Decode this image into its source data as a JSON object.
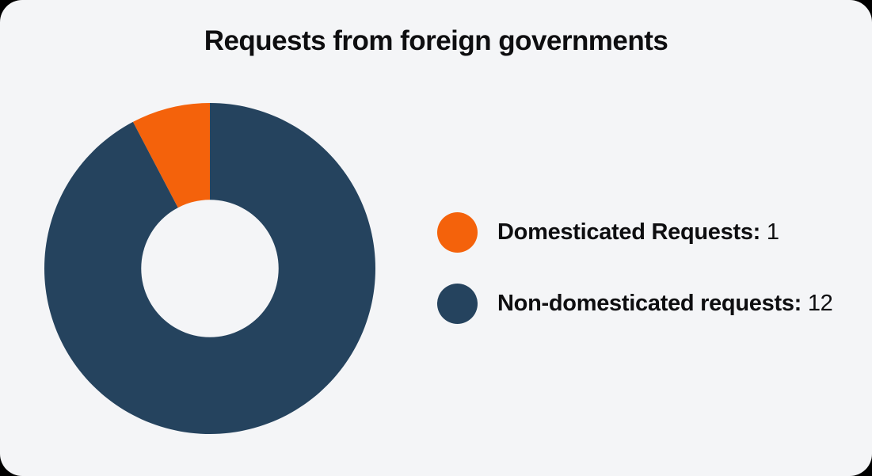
{
  "card": {
    "background_color": "#F4F5F7",
    "outer_background_color": "#000000"
  },
  "chart_data": {
    "type": "pie",
    "subtype": "donut",
    "title": "Requests from foreign governments",
    "series": [
      {
        "name": "Domesticated Requests",
        "value": 1,
        "color": "#F4620B"
      },
      {
        "name": "Non-domesticated requests",
        "value": 12,
        "color": "#25435E"
      }
    ],
    "total": 13,
    "rotation_deg": -27.69,
    "inner_radius_ratio": 0.415,
    "legend_position": "right",
    "grid": false
  },
  "legend": {
    "items": [
      {
        "label": "Domesticated Requests:",
        "value": "1"
      },
      {
        "label": "Non-domesticated requests:",
        "value": "12"
      }
    ]
  }
}
